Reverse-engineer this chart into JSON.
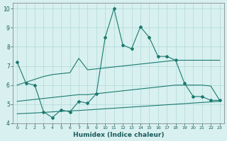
{
  "xlabel": "Humidex (Indice chaleur)",
  "x": [
    0,
    1,
    2,
    3,
    4,
    5,
    6,
    7,
    8,
    9,
    10,
    11,
    12,
    13,
    14,
    15,
    16,
    17,
    18,
    19,
    20,
    21,
    22,
    23
  ],
  "y_main": [
    7.2,
    6.1,
    6.0,
    4.6,
    4.3,
    4.7,
    4.6,
    5.15,
    5.05,
    5.55,
    8.5,
    10.0,
    8.1,
    7.9,
    9.05,
    8.5,
    7.5,
    7.5,
    7.3,
    6.1,
    5.4,
    5.4,
    5.2,
    5.2
  ],
  "y_upper": [
    6.0,
    6.15,
    6.3,
    6.45,
    6.55,
    6.6,
    6.65,
    7.4,
    6.8,
    6.85,
    6.9,
    6.95,
    7.0,
    7.05,
    7.1,
    7.15,
    7.2,
    7.25,
    7.3,
    7.3,
    7.3,
    7.3,
    7.3,
    7.3
  ],
  "y_mid": [
    5.15,
    5.2,
    5.25,
    5.3,
    5.35,
    5.4,
    5.45,
    5.5,
    5.5,
    5.55,
    5.6,
    5.65,
    5.7,
    5.75,
    5.8,
    5.85,
    5.9,
    5.95,
    6.0,
    6.0,
    6.0,
    6.0,
    5.95,
    5.2
  ],
  "y_lower": [
    4.5,
    4.52,
    4.54,
    4.57,
    4.6,
    4.63,
    4.65,
    4.67,
    4.7,
    4.73,
    4.76,
    4.79,
    4.82,
    4.85,
    4.88,
    4.91,
    4.94,
    4.97,
    5.0,
    5.03,
    5.06,
    5.09,
    5.12,
    5.15
  ],
  "color": "#1a7a6e",
  "bg_color": "#d8f0f0",
  "grid_color": "#b0d8d8",
  "ylim": [
    4,
    10.3
  ],
  "xlim": [
    -0.5,
    23.5
  ]
}
